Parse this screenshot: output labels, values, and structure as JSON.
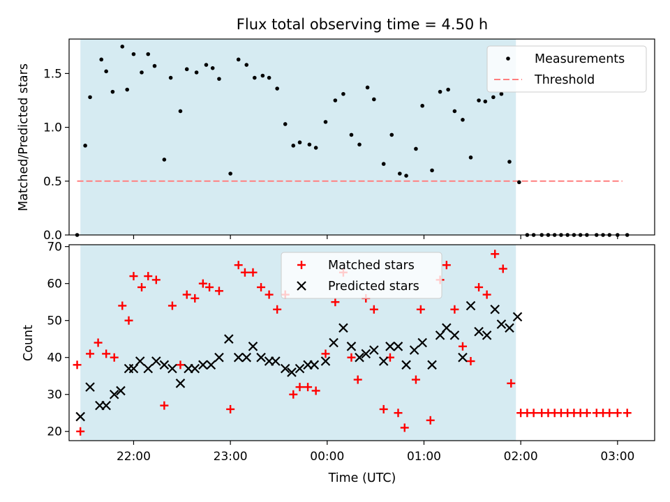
{
  "chart_data": [
    {
      "type": "scatter",
      "title": "Flux total observing time = 4.50 h",
      "xlabel": "",
      "ylabel": "Matched/Predicted stars",
      "xlim": [
        "21:20",
        "03:23"
      ],
      "ylim": [
        0,
        1.82
      ],
      "xticks": [
        "22:00",
        "23:00",
        "00:00",
        "01:00",
        "02:00",
        "03:00"
      ],
      "yticks": [
        0.0,
        0.5,
        1.0,
        1.5
      ],
      "ytick_labels": [
        "0.0",
        "0.5",
        "1.0",
        "1.5"
      ],
      "shaded_span": [
        "21:27",
        "01:57"
      ],
      "legend_position": "upper right",
      "threshold": {
        "name": "Threshold",
        "y": 0.5,
        "x_range": [
          "21:25",
          "03:03"
        ],
        "color": "#ff7f7f"
      },
      "series": [
        {
          "name": "Measurements",
          "marker": "dot",
          "color": "#000000",
          "points": [
            [
              "21:25",
              0.0
            ],
            [
              "21:30",
              0.83
            ],
            [
              "21:33",
              1.28
            ],
            [
              "21:40",
              1.63
            ],
            [
              "21:43",
              1.52
            ],
            [
              "21:47",
              1.33
            ],
            [
              "21:53",
              1.75
            ],
            [
              "21:56",
              1.35
            ],
            [
              "22:00",
              1.68
            ],
            [
              "22:05",
              1.51
            ],
            [
              "22:09",
              1.68
            ],
            [
              "22:13",
              1.57
            ],
            [
              "22:19",
              0.7
            ],
            [
              "22:23",
              1.46
            ],
            [
              "22:29",
              1.15
            ],
            [
              "22:33",
              1.54
            ],
            [
              "22:39",
              1.51
            ],
            [
              "22:45",
              1.58
            ],
            [
              "22:49",
              1.55
            ],
            [
              "22:53",
              1.45
            ],
            [
              "23:00",
              0.57
            ],
            [
              "23:05",
              1.63
            ],
            [
              "23:10",
              1.58
            ],
            [
              "23:15",
              1.46
            ],
            [
              "23:20",
              1.48
            ],
            [
              "23:24",
              1.46
            ],
            [
              "23:29",
              1.36
            ],
            [
              "23:34",
              1.03
            ],
            [
              "23:39",
              0.83
            ],
            [
              "23:43",
              0.86
            ],
            [
              "23:49",
              0.84
            ],
            [
              "23:53",
              0.81
            ],
            [
              "23:59",
              1.05
            ],
            [
              "00:05",
              1.25
            ],
            [
              "00:10",
              1.31
            ],
            [
              "00:15",
              0.93
            ],
            [
              "00:20",
              0.84
            ],
            [
              "00:25",
              1.37
            ],
            [
              "00:29",
              1.26
            ],
            [
              "00:35",
              0.66
            ],
            [
              "00:40",
              0.93
            ],
            [
              "00:45",
              0.57
            ],
            [
              "00:49",
              0.55
            ],
            [
              "00:55",
              0.8
            ],
            [
              "00:59",
              1.2
            ],
            [
              "01:05",
              0.6
            ],
            [
              "01:10",
              1.33
            ],
            [
              "01:15",
              1.35
            ],
            [
              "01:19",
              1.15
            ],
            [
              "01:24",
              1.07
            ],
            [
              "01:29",
              0.72
            ],
            [
              "01:34",
              1.25
            ],
            [
              "01:38",
              1.24
            ],
            [
              "01:43",
              1.28
            ],
            [
              "01:48",
              1.31
            ],
            [
              "01:53",
              0.68
            ],
            [
              "01:59",
              0.49
            ],
            [
              "02:04",
              0.0
            ],
            [
              "02:08",
              0.0
            ],
            [
              "02:13",
              0.0
            ],
            [
              "02:17",
              0.0
            ],
            [
              "02:21",
              0.0
            ],
            [
              "02:25",
              0.0
            ],
            [
              "02:29",
              0.0
            ],
            [
              "02:33",
              0.0
            ],
            [
              "02:37",
              0.0
            ],
            [
              "02:41",
              0.0
            ],
            [
              "02:47",
              0.0
            ],
            [
              "02:51",
              0.0
            ],
            [
              "02:55",
              0.0
            ],
            [
              "03:00",
              0.0
            ],
            [
              "03:06",
              0.0
            ]
          ]
        }
      ]
    },
    {
      "type": "scatter",
      "title": "",
      "xlabel": "Time (UTC)",
      "ylabel": "Count",
      "xlim": [
        "21:20",
        "03:23"
      ],
      "ylim": [
        17.5,
        70.5
      ],
      "xticks": [
        "22:00",
        "23:00",
        "00:00",
        "01:00",
        "02:00",
        "03:00"
      ],
      "yticks": [
        20,
        30,
        40,
        50,
        60,
        70
      ],
      "shaded_span": [
        "21:27",
        "01:57"
      ],
      "legend_position": "upper center",
      "series": [
        {
          "name": "Matched stars",
          "marker": "plus",
          "color": "#ff0000",
          "points": [
            [
              "21:25",
              38
            ],
            [
              "21:27",
              20
            ],
            [
              "21:33",
              41
            ],
            [
              "21:38",
              44
            ],
            [
              "21:43",
              41
            ],
            [
              "21:48",
              40
            ],
            [
              "21:53",
              54
            ],
            [
              "21:57",
              50
            ],
            [
              "22:00",
              62
            ],
            [
              "22:05",
              59
            ],
            [
              "22:09",
              62
            ],
            [
              "22:14",
              61
            ],
            [
              "22:19",
              27
            ],
            [
              "22:24",
              54
            ],
            [
              "22:29",
              38
            ],
            [
              "22:33",
              57
            ],
            [
              "22:38",
              56
            ],
            [
              "22:43",
              60
            ],
            [
              "22:47",
              59
            ],
            [
              "22:53",
              58
            ],
            [
              "23:00",
              26
            ],
            [
              "23:05",
              65
            ],
            [
              "23:09",
              63
            ],
            [
              "23:14",
              63
            ],
            [
              "23:19",
              59
            ],
            [
              "23:24",
              57
            ],
            [
              "23:29",
              53
            ],
            [
              "23:34",
              57
            ],
            [
              "23:39",
              30
            ],
            [
              "23:43",
              32
            ],
            [
              "23:48",
              32
            ],
            [
              "23:53",
              31
            ],
            [
              "23:59",
              41
            ],
            [
              "00:05",
              55
            ],
            [
              "00:10",
              63
            ],
            [
              "00:15",
              40
            ],
            [
              "00:19",
              34
            ],
            [
              "00:24",
              56
            ],
            [
              "00:29",
              53
            ],
            [
              "00:35",
              26
            ],
            [
              "00:39",
              40
            ],
            [
              "00:44",
              25
            ],
            [
              "00:48",
              21
            ],
            [
              "00:55",
              34
            ],
            [
              "00:58",
              53
            ],
            [
              "01:04",
              23
            ],
            [
              "01:10",
              61
            ],
            [
              "01:14",
              65
            ],
            [
              "01:19",
              53
            ],
            [
              "01:24",
              43
            ],
            [
              "01:29",
              39
            ],
            [
              "01:34",
              59
            ],
            [
              "01:39",
              57
            ],
            [
              "01:44",
              68
            ],
            [
              "01:49",
              64
            ],
            [
              "01:54",
              33
            ],
            [
              "02:00",
              25
            ],
            [
              "02:04",
              25
            ],
            [
              "02:08",
              25
            ],
            [
              "02:13",
              25
            ],
            [
              "02:17",
              25
            ],
            [
              "02:21",
              25
            ],
            [
              "02:25",
              25
            ],
            [
              "02:29",
              25
            ],
            [
              "02:33",
              25
            ],
            [
              "02:37",
              25
            ],
            [
              "02:41",
              25
            ],
            [
              "02:47",
              25
            ],
            [
              "02:51",
              25
            ],
            [
              "02:55",
              25
            ],
            [
              "03:00",
              25
            ],
            [
              "03:06",
              25
            ]
          ]
        },
        {
          "name": "Predicted stars",
          "marker": "x",
          "color": "#000000",
          "points": [
            [
              "21:27",
              24
            ],
            [
              "21:33",
              32
            ],
            [
              "21:39",
              27
            ],
            [
              "21:43",
              27
            ],
            [
              "21:48",
              30
            ],
            [
              "21:52",
              31
            ],
            [
              "21:57",
              37
            ],
            [
              "22:00",
              37
            ],
            [
              "22:04",
              39
            ],
            [
              "22:09",
              37
            ],
            [
              "22:14",
              39
            ],
            [
              "22:19",
              38
            ],
            [
              "22:24",
              37
            ],
            [
              "22:29",
              33
            ],
            [
              "22:34",
              37
            ],
            [
              "22:38",
              37
            ],
            [
              "22:43",
              38
            ],
            [
              "22:48",
              38
            ],
            [
              "22:53",
              40
            ],
            [
              "22:59",
              45
            ],
            [
              "23:05",
              40
            ],
            [
              "23:10",
              40
            ],
            [
              "23:14",
              43
            ],
            [
              "23:19",
              40
            ],
            [
              "23:24",
              39
            ],
            [
              "23:28",
              39
            ],
            [
              "23:34",
              37
            ],
            [
              "23:38",
              36
            ],
            [
              "23:43",
              37
            ],
            [
              "23:48",
              38
            ],
            [
              "23:52",
              38
            ],
            [
              "23:59",
              39
            ],
            [
              "00:04",
              44
            ],
            [
              "00:10",
              48
            ],
            [
              "00:15",
              43
            ],
            [
              "00:20",
              40
            ],
            [
              "00:24",
              41
            ],
            [
              "00:29",
              42
            ],
            [
              "00:35",
              39
            ],
            [
              "00:39",
              43
            ],
            [
              "00:44",
              43
            ],
            [
              "00:49",
              38
            ],
            [
              "00:54",
              42
            ],
            [
              "00:59",
              44
            ],
            [
              "01:05",
              38
            ],
            [
              "01:10",
              46
            ],
            [
              "01:14",
              48
            ],
            [
              "01:19",
              46
            ],
            [
              "01:24",
              40
            ],
            [
              "01:29",
              54
            ],
            [
              "01:34",
              47
            ],
            [
              "01:39",
              46
            ],
            [
              "01:44",
              53
            ],
            [
              "01:48",
              49
            ],
            [
              "01:53",
              48
            ],
            [
              "01:58",
              51
            ]
          ]
        }
      ]
    }
  ],
  "colors": {
    "shade": "#add8e6",
    "threshold": "#ff7f7f",
    "matched": "#ff0000",
    "predicted": "#000000",
    "measurements": "#000000"
  }
}
